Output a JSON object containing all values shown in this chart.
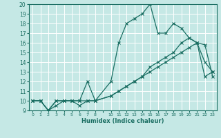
{
  "title": "",
  "xlabel": "Humidex (Indice chaleur)",
  "bg_color": "#c5e8e5",
  "grid_color": "#ffffff",
  "line_color": "#1a6e62",
  "line1_x": [
    0,
    1,
    2,
    3,
    4,
    5,
    6,
    7,
    8,
    10,
    11,
    12,
    13,
    14,
    15,
    16,
    17,
    18,
    19,
    20,
    21,
    22,
    23
  ],
  "line1_y": [
    10,
    10,
    9,
    10,
    10,
    10,
    10,
    12,
    10,
    12,
    16,
    18,
    18.5,
    19,
    20,
    17,
    17,
    18,
    17.5,
    16.5,
    16,
    14,
    13
  ],
  "line2_x": [
    0,
    1,
    2,
    3,
    4,
    5,
    6,
    7,
    8,
    10,
    11,
    12,
    13,
    14,
    15,
    16,
    17,
    18,
    19,
    20,
    21,
    22,
    23
  ],
  "line2_y": [
    10,
    10,
    9,
    10,
    10,
    10,
    10,
    10,
    10,
    10.5,
    11,
    11.5,
    12,
    12.5,
    13,
    13.5,
    14,
    14.5,
    15,
    15.5,
    16,
    12.5,
    13
  ],
  "line3_x": [
    0,
    1,
    2,
    3,
    4,
    5,
    6,
    7,
    8,
    10,
    11,
    12,
    13,
    14,
    15,
    16,
    17,
    18,
    19,
    20,
    21,
    22,
    23
  ],
  "line3_y": [
    10,
    10,
    9,
    9.5,
    10,
    10,
    9.5,
    10,
    10,
    10.5,
    11,
    11.5,
    12,
    12.5,
    13.5,
    14,
    14.5,
    15,
    16,
    16.5,
    16,
    15.8,
    12.5
  ],
  "ylim": [
    9,
    20
  ],
  "yticks": [
    9,
    10,
    11,
    12,
    13,
    14,
    15,
    16,
    17,
    18,
    19,
    20
  ],
  "xtick_positions": [
    0,
    1,
    2,
    3,
    4,
    5,
    6,
    7,
    8,
    9,
    10,
    11,
    12,
    13,
    14,
    15,
    16,
    17,
    18,
    19,
    20,
    21,
    22,
    23
  ],
  "xtick_labels": [
    "0",
    "1",
    "2",
    "3",
    "4",
    "5",
    "6",
    "7",
    "8",
    "",
    "10",
    "11",
    "12",
    "13",
    "14",
    "15",
    "16",
    "17",
    "18",
    "19",
    "20",
    "21",
    "22",
    "23"
  ]
}
